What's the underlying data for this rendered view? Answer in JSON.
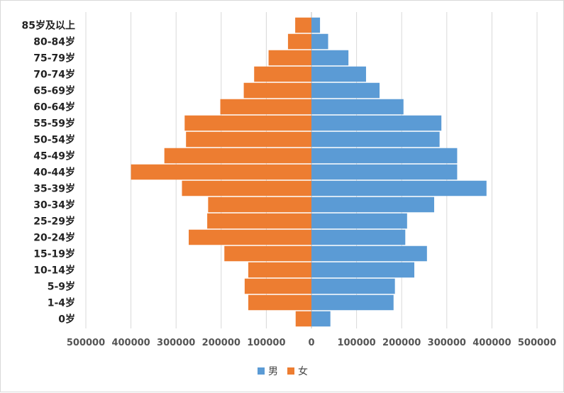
{
  "chart_data": {
    "type": "bar",
    "orientation": "horizontal",
    "subtype": "population-pyramid",
    "categories": [
      "0岁",
      "1-4岁",
      "5-9岁",
      "10-14岁",
      "15-19岁",
      "20-24岁",
      "25-29岁",
      "30-34岁",
      "35-39岁",
      "40-44岁",
      "45-49岁",
      "50-54岁",
      "55-59岁",
      "60-64岁",
      "65-69岁",
      "70-74岁",
      "75-79岁",
      "80-84岁",
      "85岁及以上"
    ],
    "series": [
      {
        "name": "男",
        "color": "#5b9bd5",
        "values": [
          42000,
          182000,
          185000,
          228000,
          256000,
          208000,
          212000,
          272000,
          388000,
          323000,
          323000,
          284000,
          288000,
          204000,
          151000,
          121000,
          82000,
          37000,
          19000
        ]
      },
      {
        "name": "女",
        "color": "#ed7d31",
        "values": [
          -35000,
          -140000,
          -148000,
          -140000,
          -193000,
          -272000,
          -231000,
          -229000,
          -287000,
          -400000,
          -326000,
          -278000,
          -281000,
          -202000,
          -150000,
          -127000,
          -95000,
          -52000,
          -36000
        ]
      }
    ],
    "x_ticks": [
      "500000",
      "400000",
      "300000",
      "200000",
      "100000",
      "0",
      "100000",
      "200000",
      "300000",
      "400000",
      "500000"
    ],
    "xlim": [
      -500000,
      500000
    ],
    "grid": "vertical",
    "legend": "bottom-center"
  }
}
